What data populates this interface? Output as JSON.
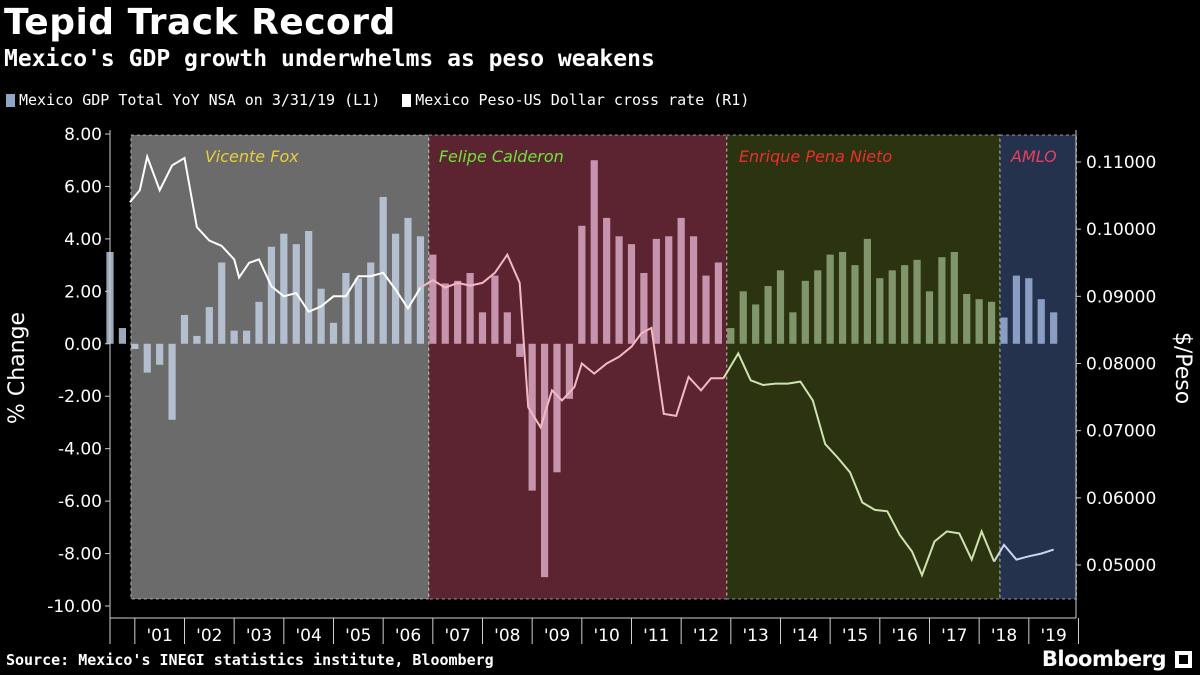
{
  "header": {
    "title": "Tepid Track Record",
    "subtitle": "Mexico's GDP growth underwhelms as peso weakens"
  },
  "legend": [
    {
      "label": "Mexico GDP Total YoY NSA  on 3/31/19 (L1)",
      "color": "#8fa6c9"
    },
    {
      "label": "Mexico Peso-US Dollar cross rate (R1)",
      "color": "#ffffff"
    }
  ],
  "footer": {
    "source": "Source: Mexico's INEGI statistics institute, Bloomberg",
    "brand": "Bloomberg"
  },
  "chart_data": {
    "type": "bar+line",
    "title": "Tepid Track Record",
    "ylabel_left": "% Change",
    "ylabel_right": "$/Peso",
    "left_axis": {
      "min": -10,
      "max": 8,
      "ticks": [
        "8.00",
        "6.00",
        "4.00",
        "2.00",
        "0.00",
        "-2.00",
        "-4.00",
        "-6.00",
        "-8.00",
        "-10.00"
      ]
    },
    "right_axis": {
      "min": 0.045,
      "max": 0.115,
      "ticks": [
        "0.11000",
        "0.10000",
        "0.09000",
        "0.08000",
        "0.07000",
        "0.06000",
        "0.05000"
      ]
    },
    "x_range": [
      2000.5,
      2019.95
    ],
    "x_ticks": [
      "'01",
      "'02",
      "'03",
      "'04",
      "'05",
      "'06",
      "'07",
      "'08",
      "'09",
      "'10",
      "'11",
      "'12",
      "'13",
      "'14",
      "'15",
      "'16",
      "'17",
      "'18",
      "'19"
    ],
    "eras": [
      {
        "label": "Vicente Fox",
        "start": 2000.92,
        "end": 2006.92,
        "fill": "#6b6b6b",
        "label_color": "#e6cf3c"
      },
      {
        "label": "Felipe Calderon",
        "start": 2006.92,
        "end": 2012.92,
        "fill": "#5c2431",
        "label_color": "#6ee23a"
      },
      {
        "label": "Enrique Pena Nieto",
        "start": 2012.92,
        "end": 2018.42,
        "fill": "#2b3311",
        "label_color": "#e8302c"
      },
      {
        "label": "AMLO",
        "start": 2018.42,
        "end": 2019.96,
        "fill": "#24324d",
        "label_color": "#e8405e"
      }
    ],
    "gdp_series": {
      "name": "Mexico GDP Total YoY NSA",
      "start": 2000.5,
      "step": 0.25,
      "values": [
        3.5,
        0.6,
        -0.2,
        -1.1,
        -0.8,
        -2.9,
        1.1,
        0.3,
        1.4,
        3.1,
        0.5,
        0.5,
        1.6,
        3.7,
        4.2,
        3.8,
        4.3,
        2.1,
        0.8,
        2.7,
        2.5,
        3.1,
        5.6,
        4.2,
        4.8,
        4.1,
        3.4,
        2.3,
        2.4,
        2.7,
        1.2,
        2.6,
        1.2,
        -0.5,
        -5.6,
        -8.9,
        -4.9,
        -2.1,
        4.5,
        7.0,
        4.8,
        4.1,
        3.8,
        2.7,
        4.0,
        4.1,
        4.8,
        4.1,
        2.6,
        3.1,
        0.6,
        2.0,
        1.5,
        2.2,
        2.8,
        1.2,
        2.4,
        2.8,
        3.4,
        3.5,
        3.0,
        4.0,
        2.5,
        2.8,
        3.0,
        3.2,
        2.0,
        3.3,
        3.5,
        1.9,
        1.7,
        1.6,
        1.0,
        2.6,
        2.5,
        1.7,
        1.2
      ]
    },
    "peso_series": {
      "name": "Mexico Peso-US Dollar cross rate",
      "points": [
        [
          2000.9,
          0.104
        ],
        [
          2001.1,
          0.1058
        ],
        [
          2001.25,
          0.1108
        ],
        [
          2001.5,
          0.1058
        ],
        [
          2001.75,
          0.1095
        ],
        [
          2002.0,
          0.1106
        ],
        [
          2002.25,
          0.1003
        ],
        [
          2002.5,
          0.0983
        ],
        [
          2002.75,
          0.0975
        ],
        [
          2003.0,
          0.0955
        ],
        [
          2003.1,
          0.0928
        ],
        [
          2003.3,
          0.095
        ],
        [
          2003.5,
          0.0955
        ],
        [
          2003.75,
          0.0915
        ],
        [
          2004.0,
          0.09
        ],
        [
          2004.25,
          0.0905
        ],
        [
          2004.5,
          0.0877
        ],
        [
          2004.75,
          0.0885
        ],
        [
          2005.0,
          0.09
        ],
        [
          2005.25,
          0.09
        ],
        [
          2005.5,
          0.093
        ],
        [
          2005.75,
          0.093
        ],
        [
          2006.0,
          0.0935
        ],
        [
          2006.25,
          0.091
        ],
        [
          2006.5,
          0.0882
        ],
        [
          2006.75,
          0.0913
        ],
        [
          2007.0,
          0.0924
        ],
        [
          2007.25,
          0.0913
        ],
        [
          2007.5,
          0.092
        ],
        [
          2007.75,
          0.0916
        ],
        [
          2008.0,
          0.092
        ],
        [
          2008.25,
          0.0935
        ],
        [
          2008.5,
          0.0962
        ],
        [
          2008.75,
          0.092
        ],
        [
          2008.92,
          0.0735
        ],
        [
          2009.17,
          0.0705
        ],
        [
          2009.4,
          0.076
        ],
        [
          2009.6,
          0.0745
        ],
        [
          2009.85,
          0.0765
        ],
        [
          2010.0,
          0.08
        ],
        [
          2010.25,
          0.0785
        ],
        [
          2010.5,
          0.08
        ],
        [
          2010.75,
          0.081
        ],
        [
          2011.0,
          0.0825
        ],
        [
          2011.2,
          0.0845
        ],
        [
          2011.4,
          0.0853
        ],
        [
          2011.65,
          0.0725
        ],
        [
          2011.9,
          0.0722
        ],
        [
          2012.15,
          0.078
        ],
        [
          2012.4,
          0.076
        ],
        [
          2012.6,
          0.0778
        ],
        [
          2012.85,
          0.0778
        ],
        [
          2013.15,
          0.0815
        ],
        [
          2013.4,
          0.0775
        ],
        [
          2013.65,
          0.0768
        ],
        [
          2013.9,
          0.077
        ],
        [
          2014.15,
          0.077
        ],
        [
          2014.4,
          0.0773
        ],
        [
          2014.65,
          0.0745
        ],
        [
          2014.9,
          0.068
        ],
        [
          2015.15,
          0.066
        ],
        [
          2015.4,
          0.0638
        ],
        [
          2015.65,
          0.0593
        ],
        [
          2015.9,
          0.0582
        ],
        [
          2016.15,
          0.058
        ],
        [
          2016.4,
          0.0545
        ],
        [
          2016.65,
          0.052
        ],
        [
          2016.85,
          0.0485
        ],
        [
          2017.1,
          0.0535
        ],
        [
          2017.35,
          0.055
        ],
        [
          2017.6,
          0.0547
        ],
        [
          2017.85,
          0.0508
        ],
        [
          2018.05,
          0.055
        ],
        [
          2018.3,
          0.0505
        ],
        [
          2018.5,
          0.053
        ],
        [
          2018.75,
          0.0508
        ],
        [
          2019.0,
          0.0513
        ],
        [
          2019.25,
          0.0517
        ],
        [
          2019.5,
          0.0523
        ]
      ]
    }
  }
}
